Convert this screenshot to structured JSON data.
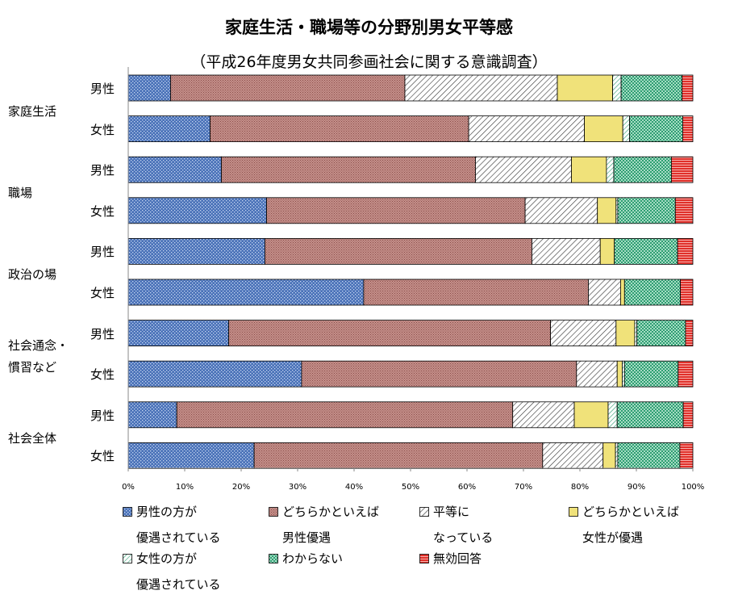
{
  "chart_data": {
    "type": "bar",
    "orientation": "horizontal",
    "stacked": "percent",
    "title": "家庭生活・職場等の分野別男女平等感",
    "subtitle": "（平成26年度男女共同参画社会に関する意識調査）",
    "groups": [
      {
        "label": "家庭生活",
        "rows": [
          {
            "label": "男性",
            "values": [
              7.5,
              41.5,
              27.0,
              9.8,
              1.5,
              10.8,
              1.9
            ]
          },
          {
            "label": "女性",
            "values": [
              14.5,
              45.8,
              20.5,
              6.8,
              1.2,
              9.4,
              1.8
            ]
          }
        ]
      },
      {
        "label": "職場",
        "rows": [
          {
            "label": "男性",
            "values": [
              16.5,
              45.0,
              17.0,
              6.2,
              1.3,
              10.2,
              3.8
            ]
          },
          {
            "label": "女性",
            "values": [
              24.5,
              45.8,
              12.8,
              3.3,
              0.3,
              10.2,
              3.1
            ]
          }
        ]
      },
      {
        "label": "政治の場",
        "rows": [
          {
            "label": "男性",
            "values": [
              24.2,
              47.3,
              12.1,
              2.5,
              0.0,
              11.2,
              2.7
            ]
          },
          {
            "label": "女性",
            "values": [
              41.7,
              39.8,
              5.7,
              0.7,
              0.0,
              9.9,
              2.2
            ]
          }
        ]
      },
      {
        "label": "社会通念・\n慣習など",
        "rows": [
          {
            "label": "男性",
            "values": [
              17.8,
              57.0,
              11.6,
              3.3,
              0.4,
              8.6,
              1.3
            ]
          },
          {
            "label": "女性",
            "values": [
              30.7,
              48.7,
              7.2,
              0.9,
              0.4,
              9.5,
              2.6
            ]
          }
        ]
      },
      {
        "label": "社会全体",
        "rows": [
          {
            "label": "男性",
            "values": [
              8.6,
              59.5,
              10.9,
              6.0,
              1.6,
              11.7,
              1.7
            ]
          },
          {
            "label": "女性",
            "values": [
              22.3,
              51.1,
              10.7,
              2.2,
              0.4,
              11.0,
              2.3
            ]
          }
        ]
      }
    ],
    "series": [
      {
        "name": "男性の方が\n優遇されている",
        "color": "#4a72b8",
        "pattern": "dots"
      },
      {
        "name": "どちらかといえば\n男性優遇",
        "color": "#c58f8a",
        "pattern": "stipple"
      },
      {
        "name": "平等に\nなっている",
        "color": "#ffffff",
        "pattern": "hatch"
      },
      {
        "name": "どちらかといえば\n女性が優遇",
        "color": "#f0e27a",
        "pattern": "solid"
      },
      {
        "name": "女性の方が\n優遇されている",
        "color": "#ffffff",
        "pattern": "hatch-green"
      },
      {
        "name": "わからない",
        "color": "#2e9e72",
        "pattern": "checker"
      },
      {
        "name": "無効回答",
        "color": "#e0302a",
        "pattern": "hlines"
      }
    ],
    "xaxis": {
      "ticks": [
        "0%",
        "10%",
        "20%",
        "30%",
        "40%",
        "50%",
        "60%",
        "70%",
        "80%",
        "90%",
        "100%"
      ],
      "range": [
        0,
        100
      ]
    },
    "legend": "bottom"
  }
}
